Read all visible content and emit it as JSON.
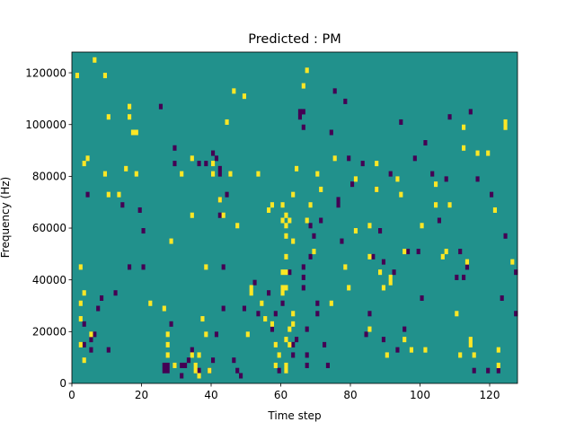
{
  "chart_data": {
    "type": "heatmap",
    "title": "Predicted : PM",
    "xlabel": "Time step",
    "ylabel": "Frequency (Hz)",
    "xlim": [
      0,
      128
    ],
    "ylim": [
      0,
      128000
    ],
    "xticks": [
      0,
      20,
      40,
      60,
      80,
      100,
      120
    ],
    "yticks": [
      0,
      20000,
      40000,
      60000,
      80000,
      100000,
      120000
    ],
    "xtick_labels": [
      "0",
      "20",
      "40",
      "60",
      "80",
      "100",
      "120"
    ],
    "ytick_labels": [
      "0",
      "20000",
      "40000",
      "60000",
      "80000",
      "100000",
      "120000"
    ],
    "grid": false,
    "colormap": "viridis",
    "value_levels": {
      "low": -1,
      "mid": 0,
      "high": 1
    },
    "colors": {
      "low": "#440154",
      "mid": "#21918c",
      "high": "#fde725"
    },
    "background_value": 0,
    "cells_high": [
      [
        1,
        118000
      ],
      [
        2,
        44000
      ],
      [
        2,
        30000
      ],
      [
        2,
        24000
      ],
      [
        2,
        14000
      ],
      [
        3,
        34000
      ],
      [
        3,
        8000
      ],
      [
        3,
        84000
      ],
      [
        4,
        86000
      ],
      [
        5,
        18000
      ],
      [
        6,
        124000
      ],
      [
        9,
        118000
      ],
      [
        9,
        80000
      ],
      [
        10,
        102000
      ],
      [
        10,
        72000
      ],
      [
        13,
        72000
      ],
      [
        15,
        82000
      ],
      [
        16,
        106000
      ],
      [
        16,
        102000
      ],
      [
        17,
        96000
      ],
      [
        18,
        96000
      ],
      [
        18,
        80000
      ],
      [
        22,
        30000
      ],
      [
        26,
        28000
      ],
      [
        27,
        18000
      ],
      [
        27,
        14000
      ],
      [
        27,
        10000
      ],
      [
        28,
        54000
      ],
      [
        29,
        6000
      ],
      [
        31,
        80000
      ],
      [
        34,
        86000
      ],
      [
        34,
        64000
      ],
      [
        34,
        10000
      ],
      [
        35,
        6000
      ],
      [
        35,
        4000
      ],
      [
        36,
        10000
      ],
      [
        36,
        2000
      ],
      [
        37,
        24000
      ],
      [
        38,
        18000
      ],
      [
        38,
        44000
      ],
      [
        39,
        4000
      ],
      [
        40,
        84000
      ],
      [
        40,
        80000
      ],
      [
        42,
        70000
      ],
      [
        43,
        64000
      ],
      [
        44,
        100000
      ],
      [
        45,
        80000
      ],
      [
        46,
        112000
      ],
      [
        47,
        60000
      ],
      [
        49,
        110000
      ],
      [
        50,
        18000
      ],
      [
        51,
        36000
      ],
      [
        51,
        34000
      ],
      [
        53,
        80000
      ],
      [
        54,
        30000
      ],
      [
        55,
        24000
      ],
      [
        56,
        66000
      ],
      [
        57,
        68000
      ],
      [
        57,
        22000
      ],
      [
        58,
        6000
      ],
      [
        58,
        14000
      ],
      [
        59,
        10000
      ],
      [
        60,
        68000
      ],
      [
        60,
        62000
      ],
      [
        60,
        42000
      ],
      [
        60,
        36000
      ],
      [
        60,
        34000
      ],
      [
        61,
        64000
      ],
      [
        61,
        60000
      ],
      [
        61,
        56000
      ],
      [
        61,
        48000
      ],
      [
        61,
        42000
      ],
      [
        61,
        36000
      ],
      [
        61,
        16000
      ],
      [
        61,
        6000
      ],
      [
        61,
        4000
      ],
      [
        62,
        62000
      ],
      [
        62,
        20000
      ],
      [
        62,
        14000
      ],
      [
        63,
        72000
      ],
      [
        63,
        54000
      ],
      [
        63,
        22000
      ],
      [
        63,
        26000
      ],
      [
        64,
        82000
      ],
      [
        66,
        114000
      ],
      [
        67,
        120000
      ],
      [
        67,
        62000
      ],
      [
        68,
        68000
      ],
      [
        69,
        50000
      ],
      [
        70,
        80000
      ],
      [
        71,
        74000
      ],
      [
        74,
        30000
      ],
      [
        75,
        86000
      ],
      [
        78,
        44000
      ],
      [
        79,
        36000
      ],
      [
        81,
        78000
      ],
      [
        81,
        58000
      ],
      [
        85,
        20000
      ],
      [
        85,
        48000
      ],
      [
        85,
        60000
      ],
      [
        87,
        84000
      ],
      [
        87,
        74000
      ],
      [
        88,
        42000
      ],
      [
        89,
        36000
      ],
      [
        90,
        10000
      ],
      [
        91,
        40000
      ],
      [
        91,
        38000
      ],
      [
        93,
        78000
      ],
      [
        94,
        72000
      ],
      [
        95,
        50000
      ],
      [
        95,
        16000
      ],
      [
        97,
        12000
      ],
      [
        100,
        60000
      ],
      [
        101,
        12000
      ],
      [
        104,
        76000
      ],
      [
        104,
        68000
      ],
      [
        106,
        48000
      ],
      [
        107,
        50000
      ],
      [
        108,
        68000
      ],
      [
        110,
        26000
      ],
      [
        111,
        10000
      ],
      [
        112,
        98000
      ],
      [
        112,
        90000
      ],
      [
        113,
        46000
      ],
      [
        114,
        14000
      ],
      [
        114,
        16000
      ],
      [
        115,
        10000
      ],
      [
        116,
        88000
      ],
      [
        119,
        88000
      ],
      [
        121,
        66000
      ],
      [
        122,
        6000
      ],
      [
        122,
        12000
      ],
      [
        124,
        100000
      ],
      [
        124,
        98000
      ],
      [
        126,
        46000
      ]
    ],
    "cells_low": [
      [
        3,
        22000
      ],
      [
        3,
        14000
      ],
      [
        4,
        72000
      ],
      [
        5,
        16000
      ],
      [
        5,
        12000
      ],
      [
        6,
        18000
      ],
      [
        7,
        28000
      ],
      [
        8,
        32000
      ],
      [
        10,
        12000
      ],
      [
        12,
        34000
      ],
      [
        14,
        68000
      ],
      [
        16,
        44000
      ],
      [
        19,
        66000
      ],
      [
        20,
        58000
      ],
      [
        20,
        44000
      ],
      [
        25,
        106000
      ],
      [
        26,
        4000
      ],
      [
        26,
        6000
      ],
      [
        27,
        4000
      ],
      [
        27,
        6000
      ],
      [
        28,
        22000
      ],
      [
        29,
        90000
      ],
      [
        29,
        84000
      ],
      [
        31,
        2000
      ],
      [
        31,
        6000
      ],
      [
        32,
        6000
      ],
      [
        33,
        8000
      ],
      [
        34,
        12000
      ],
      [
        36,
        4000
      ],
      [
        36,
        84000
      ],
      [
        38,
        84000
      ],
      [
        39,
        4000
      ],
      [
        40,
        88000
      ],
      [
        40,
        8000
      ],
      [
        41,
        86000
      ],
      [
        41,
        18000
      ],
      [
        42,
        82000
      ],
      [
        42,
        80000
      ],
      [
        42,
        70000
      ],
      [
        42,
        64000
      ],
      [
        43,
        28000
      ],
      [
        43,
        44000
      ],
      [
        44,
        72000
      ],
      [
        46,
        8000
      ],
      [
        47,
        4000
      ],
      [
        48,
        2000
      ],
      [
        49,
        28000
      ],
      [
        52,
        38000
      ],
      [
        53,
        26000
      ],
      [
        56,
        34000
      ],
      [
        57,
        20000
      ],
      [
        58,
        26000
      ],
      [
        59,
        4000
      ],
      [
        60,
        30000
      ],
      [
        62,
        42000
      ],
      [
        63,
        10000
      ],
      [
        63,
        14000
      ],
      [
        65,
        104000
      ],
      [
        65,
        102000
      ],
      [
        66,
        40000
      ],
      [
        66,
        36000
      ],
      [
        66,
        104000
      ],
      [
        66,
        98000
      ],
      [
        67,
        20000
      ],
      [
        67,
        10000
      ],
      [
        67,
        6000
      ],
      [
        68,
        60000
      ],
      [
        68,
        48000
      ],
      [
        69,
        56000
      ],
      [
        70,
        30000
      ],
      [
        70,
        26000
      ],
      [
        71,
        62000
      ],
      [
        72,
        14000
      ],
      [
        73,
        6000
      ],
      [
        74,
        96000
      ],
      [
        75,
        112000
      ],
      [
        76,
        70000
      ],
      [
        76,
        68000
      ],
      [
        77,
        54000
      ],
      [
        78,
        108000
      ],
      [
        79,
        86000
      ],
      [
        80,
        76000
      ],
      [
        83,
        84000
      ],
      [
        84,
        18000
      ],
      [
        85,
        26000
      ],
      [
        86,
        48000
      ],
      [
        87,
        74000
      ],
      [
        88,
        58000
      ],
      [
        89,
        46000
      ],
      [
        89,
        16000
      ],
      [
        91,
        80000
      ],
      [
        92,
        42000
      ],
      [
        93,
        12000
      ],
      [
        94,
        100000
      ],
      [
        95,
        20000
      ],
      [
        96,
        50000
      ],
      [
        98,
        86000
      ],
      [
        99,
        50000
      ],
      [
        100,
        32000
      ],
      [
        101,
        92000
      ],
      [
        103,
        80000
      ],
      [
        105,
        62000
      ],
      [
        107,
        78000
      ],
      [
        108,
        102000
      ],
      [
        110,
        40000
      ],
      [
        111,
        50000
      ],
      [
        112,
        40000
      ],
      [
        113,
        44000
      ],
      [
        114,
        104000
      ],
      [
        115,
        4000
      ],
      [
        116,
        78000
      ],
      [
        119,
        4000
      ],
      [
        120,
        72000
      ],
      [
        122,
        4000
      ],
      [
        123,
        32000
      ],
      [
        124,
        56000
      ],
      [
        127,
        42000
      ],
      [
        127,
        26000
      ],
      [
        64,
        16000
      ],
      [
        66,
        44000
      ]
    ]
  }
}
